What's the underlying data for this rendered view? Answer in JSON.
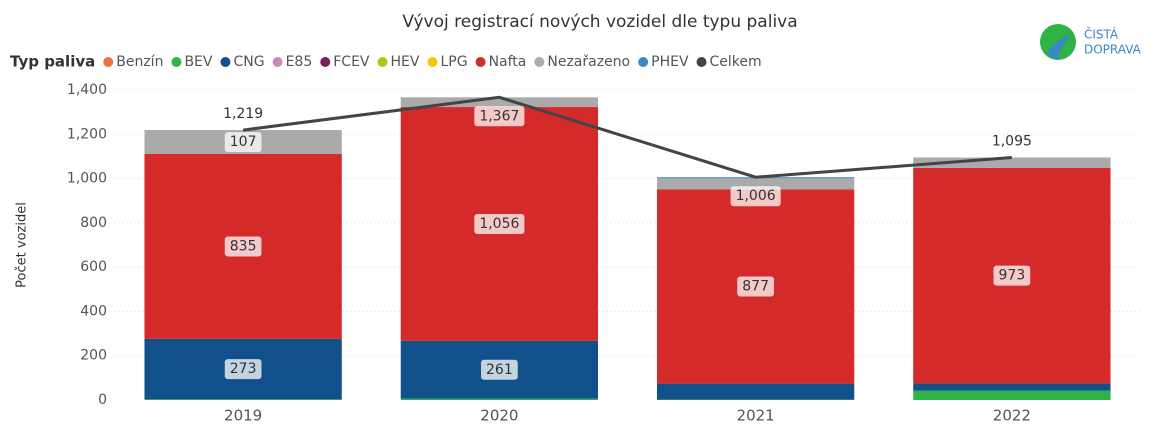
{
  "chart_data": {
    "type": "bar",
    "stacked": true,
    "title": "Vývoj registrací nových vozidel dle typu paliva",
    "logo": [
      "ČISTÁ",
      "DOPRAVA"
    ],
    "legend_title": "Typ paliva",
    "y_label": "Počet vozidel",
    "categories": [
      "2019",
      "2020",
      "2021",
      "2022"
    ],
    "ylim": [
      0,
      1400
    ],
    "yticks": [
      0,
      200,
      400,
      600,
      800,
      {
        "value": 1000,
        "label": "1,000"
      },
      {
        "value": 1200,
        "label": "1,200"
      },
      {
        "value": 1400,
        "label": "1,400"
      }
    ],
    "grid": true,
    "series": [
      {
        "name": "Benzín",
        "color": "#e8743b",
        "values": [
          0,
          0,
          0,
          0
        ]
      },
      {
        "name": "BEV",
        "color": "#2fb344",
        "values": [
          3,
          6,
          2,
          42
        ]
      },
      {
        "name": "CNG",
        "color": "#12508c",
        "values": [
          273,
          261,
          72,
          33
        ],
        "value_labels": [
          "273",
          "261",
          null,
          null
        ]
      },
      {
        "name": "E85",
        "color": "#c98bbd",
        "values": [
          0,
          0,
          0,
          0
        ]
      },
      {
        "name": "FCEV",
        "color": "#7b1d5e",
        "values": [
          0,
          0,
          0,
          0
        ]
      },
      {
        "name": "HEV",
        "color": "#a8cc1c",
        "values": [
          0,
          0,
          0,
          0
        ]
      },
      {
        "name": "LPG",
        "color": "#f2c80f",
        "values": [
          0,
          0,
          0,
          0
        ]
      },
      {
        "name": "Nafta",
        "color": "#d42a2a",
        "values": [
          835,
          1056,
          877,
          973
        ],
        "value_labels": [
          "835",
          "1,056",
          "877",
          "973"
        ]
      },
      {
        "name": "Nezařazeno",
        "color": "#aaaaaa",
        "values": [
          107,
          44,
          50,
          47
        ],
        "value_labels": [
          "107",
          null,
          null,
          null
        ]
      },
      {
        "name": "PHEV",
        "color": "#3a87c8",
        "values": [
          1,
          0,
          5,
          0
        ]
      },
      {
        "name": "Celkem",
        "color": "#444444",
        "type": "line",
        "values": [
          1219,
          1367,
          1006,
          1095
        ],
        "value_labels": [
          "1,219",
          "1,367",
          "1,006",
          "1,095"
        ]
      }
    ]
  }
}
